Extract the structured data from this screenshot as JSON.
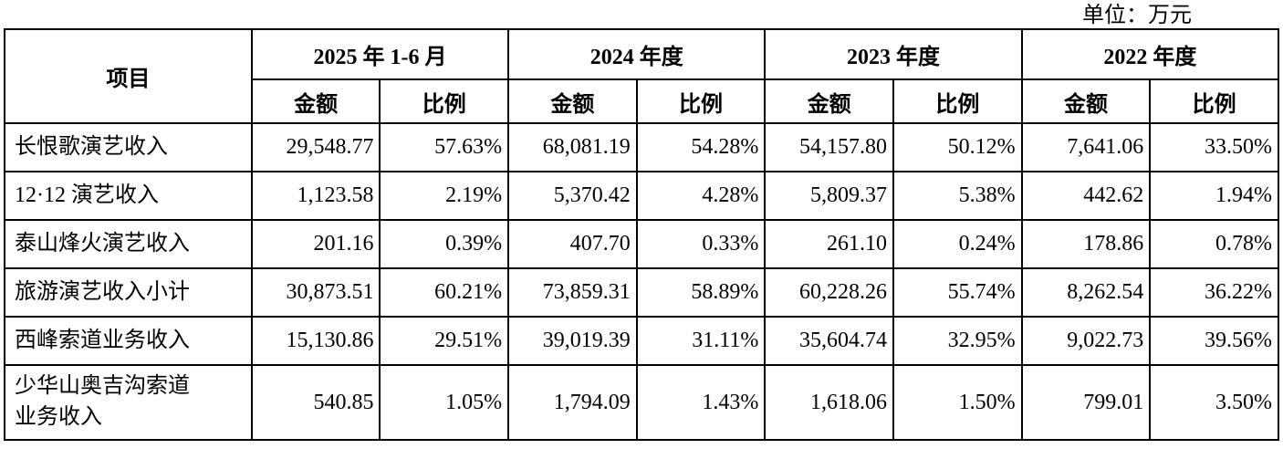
{
  "unit_label": "单位：万元",
  "table": {
    "item_header": "项目",
    "period_groups": [
      {
        "label": "2025 年 1-6 月"
      },
      {
        "label": "2024 年度"
      },
      {
        "label": "2023 年度"
      },
      {
        "label": "2022 年度"
      }
    ],
    "sub_headers": {
      "amount": "金额",
      "ratio": "比例"
    },
    "rows": [
      {
        "item": "长恨歌演艺收入",
        "values": [
          "29,548.77",
          "57.63%",
          "68,081.19",
          "54.28%",
          "54,157.80",
          "50.12%",
          "7,641.06",
          "33.50%"
        ]
      },
      {
        "item": "12·12 演艺收入",
        "values": [
          "1,123.58",
          "2.19%",
          "5,370.42",
          "4.28%",
          "5,809.37",
          "5.38%",
          "442.62",
          "1.94%"
        ]
      },
      {
        "item": "泰山烽火演艺收入",
        "values": [
          "201.16",
          "0.39%",
          "407.70",
          "0.33%",
          "261.10",
          "0.24%",
          "178.86",
          "0.78%"
        ]
      },
      {
        "item": "旅游演艺收入小计",
        "values": [
          "30,873.51",
          "60.21%",
          "73,859.31",
          "58.89%",
          "60,228.26",
          "55.74%",
          "8,262.54",
          "36.22%"
        ]
      },
      {
        "item": "西峰索道业务收入",
        "values": [
          "15,130.86",
          "29.51%",
          "39,019.39",
          "31.11%",
          "35,604.74",
          "32.95%",
          "9,022.73",
          "39.56%"
        ]
      },
      {
        "item": "少华山奥吉沟索道\n业务收入",
        "values": [
          "540.85",
          "1.05%",
          "1,794.09",
          "1.43%",
          "1,618.06",
          "1.50%",
          "799.01",
          "3.50%"
        ]
      }
    ]
  }
}
